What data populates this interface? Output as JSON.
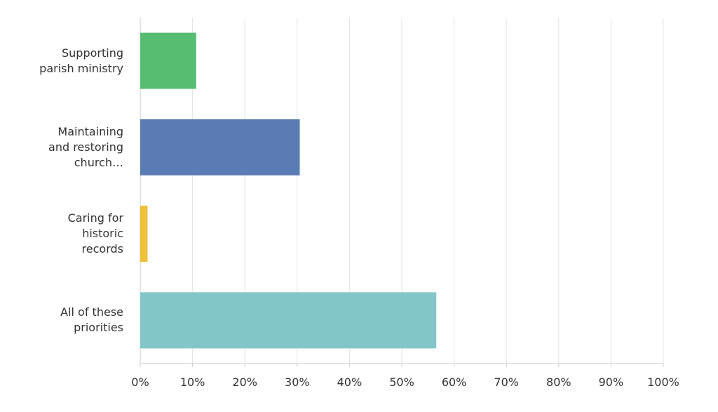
{
  "chart_data": {
    "type": "bar",
    "orientation": "horizontal",
    "categories": [
      "Supporting\nparish ministry",
      "Maintaining\nand restoring\nchurch…",
      "Caring for\nhistoric\nrecords",
      "All of these\npriorities"
    ],
    "values": [
      10.7,
      30.5,
      1.4,
      56.6
    ],
    "colors": [
      "#57bd73",
      "#5b7bb4",
      "#eec13a",
      "#82c6c8"
    ],
    "xlim": [
      0,
      100
    ],
    "xticks": [
      {
        "value": 0,
        "label": "0%"
      },
      {
        "value": 10,
        "label": "10%"
      },
      {
        "value": 20,
        "label": "20%"
      },
      {
        "value": 30,
        "label": "30%"
      },
      {
        "value": 40,
        "label": "40%"
      },
      {
        "value": 50,
        "label": "50%"
      },
      {
        "value": 60,
        "label": "60%"
      },
      {
        "value": 70,
        "label": "70%"
      },
      {
        "value": 80,
        "label": "80%"
      },
      {
        "value": 90,
        "label": "90%"
      },
      {
        "value": 100,
        "label": "100%"
      }
    ],
    "grid": true
  }
}
